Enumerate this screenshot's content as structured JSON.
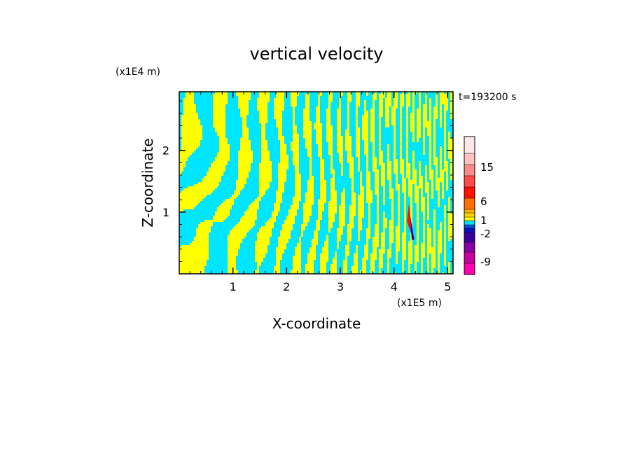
{
  "chart_data": {
    "type": "heatmap",
    "title": "vertical velocity",
    "xlabel": "X-coordinate",
    "ylabel": "Z-coordinate",
    "x_scale_note": "(x1E5 m)",
    "y_scale_note": "(x1E4 m)",
    "time_label": "t=193200 s",
    "xlim": [
      0,
      5.1
    ],
    "ylim": [
      0,
      2.95
    ],
    "x_ticks": [
      "1",
      "2",
      "3",
      "4",
      "5"
    ],
    "x_tick_values": [
      1,
      2,
      3,
      4,
      5
    ],
    "y_ticks": [
      "1",
      "2"
    ],
    "y_tick_values": [
      1,
      2
    ],
    "colorbar": {
      "labels": [
        "15",
        "6",
        "1",
        "-2",
        "-9"
      ],
      "colors": [
        "#ff00b0",
        "#c800a0",
        "#8a00a8",
        "#3a00a0",
        "#1010c0",
        "#0050e0",
        "#00e0ff",
        "#ffff00",
        "#ffd200",
        "#ffb400",
        "#ff7000",
        "#ff1000",
        "#ff4a4a",
        "#ff8a8a",
        "#ffc0c0",
        "#ffe8e8"
      ]
    },
    "dominant_colors": {
      "positive": "#ffff00",
      "negative": "#00e5ff"
    }
  }
}
